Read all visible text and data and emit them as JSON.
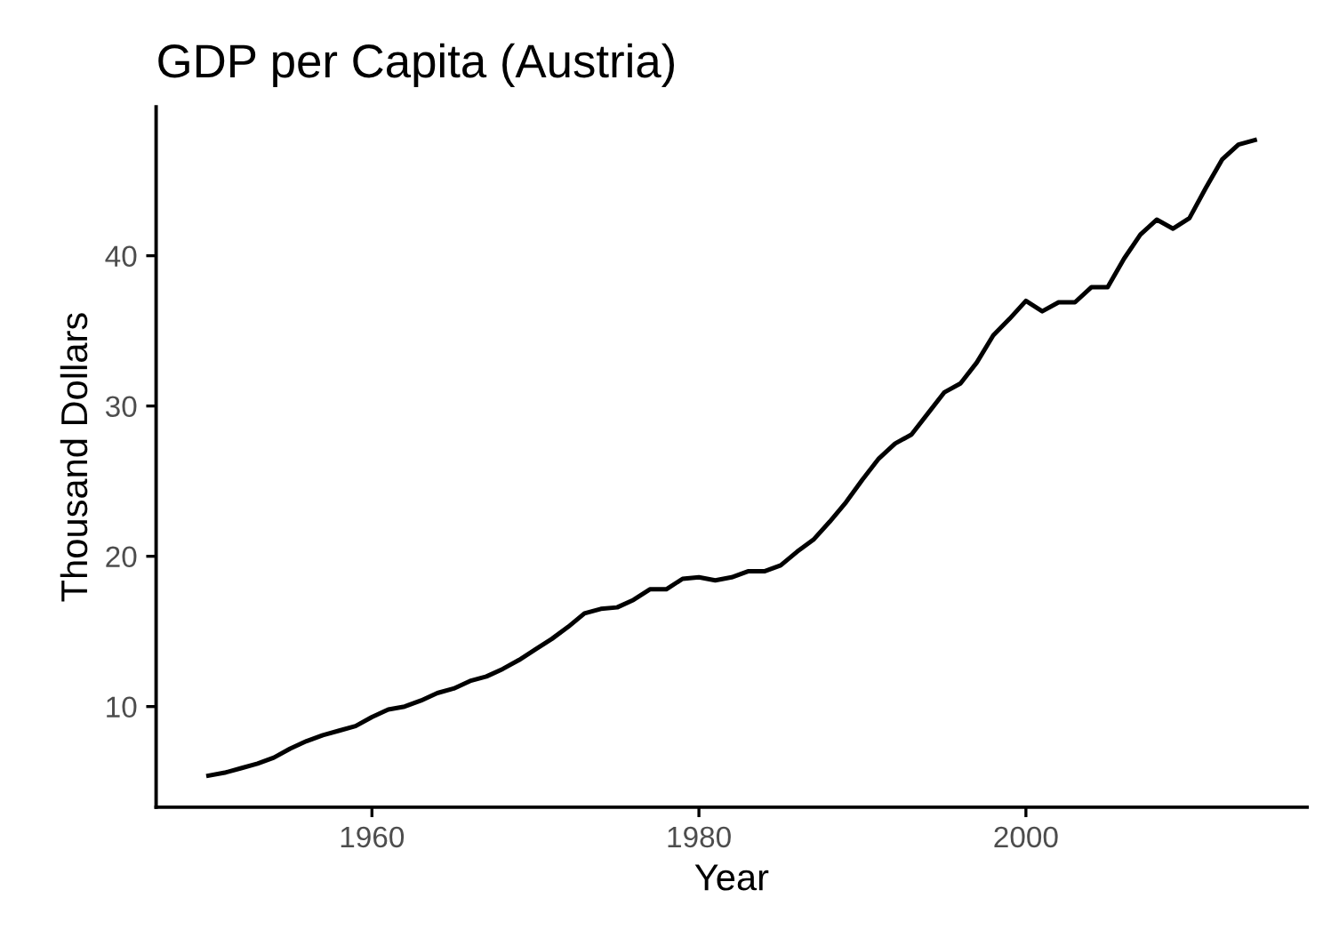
{
  "chart_data": {
    "type": "line",
    "title": "GDP per Capita (Austria)",
    "xlabel": "Year",
    "ylabel": "Thousand Dollars",
    "x": [
      1950,
      1951,
      1952,
      1953,
      1954,
      1955,
      1956,
      1957,
      1958,
      1959,
      1960,
      1961,
      1962,
      1963,
      1964,
      1965,
      1966,
      1967,
      1968,
      1969,
      1970,
      1971,
      1972,
      1973,
      1974,
      1975,
      1976,
      1977,
      1978,
      1979,
      1980,
      1981,
      1982,
      1983,
      1984,
      1985,
      1986,
      1987,
      1988,
      1989,
      1990,
      1991,
      1992,
      1993,
      1994,
      1995,
      1996,
      1997,
      1998,
      1999,
      2000,
      2001,
      2002,
      2003,
      2004,
      2005,
      2006,
      2007,
      2008,
      2009,
      2010,
      2011,
      2012,
      2013,
      2014
    ],
    "series": [
      {
        "color": "#000000",
        "values": [
          5.4,
          5.6,
          5.9,
          6.2,
          6.6,
          7.2,
          7.7,
          8.1,
          8.4,
          8.7,
          9.3,
          9.8,
          10.0,
          10.4,
          10.9,
          11.2,
          11.7,
          12.0,
          12.5,
          13.1,
          13.8,
          14.5,
          15.3,
          16.2,
          16.5,
          16.6,
          17.1,
          17.8,
          17.8,
          18.5,
          18.6,
          18.4,
          18.6,
          19.0,
          19.0,
          19.4,
          20.3,
          21.1,
          22.3,
          23.6,
          25.1,
          26.5,
          27.5,
          28.1,
          29.5,
          30.9,
          31.5,
          32.9,
          34.7,
          35.8,
          37.0,
          36.3,
          36.9,
          36.9,
          37.9,
          37.9,
          39.8,
          41.4,
          42.4,
          41.8,
          42.5,
          44.5,
          46.4,
          47.4,
          47.7
        ]
      }
    ],
    "xlim": [
      1946.8,
      2017.2
    ],
    "ylim": [
      3.3,
      49.9
    ],
    "xticks": [
      1960,
      1980,
      2000
    ],
    "yticks": [
      10,
      20,
      30,
      40
    ],
    "grid": false,
    "line_style": "solid",
    "marker": "none"
  }
}
